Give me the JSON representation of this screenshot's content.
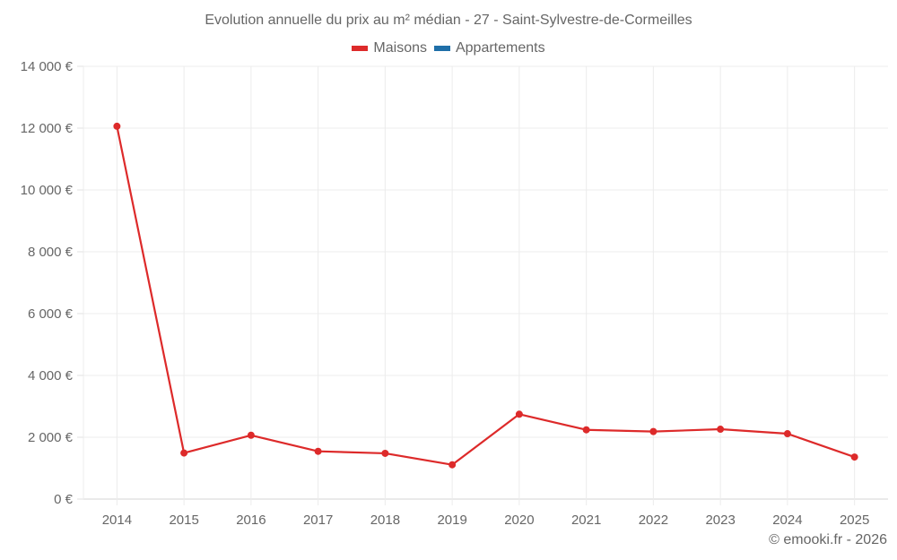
{
  "chart_data": {
    "type": "line",
    "title": "Evolution annuelle du prix au m² médian - 27 - Saint-Sylvestre-de-Cormeilles",
    "categories": [
      "2014",
      "2015",
      "2016",
      "2017",
      "2018",
      "2019",
      "2020",
      "2021",
      "2022",
      "2023",
      "2024",
      "2025"
    ],
    "series": [
      {
        "name": "Maisons",
        "color": "#dd2a2a",
        "values": [
          12060,
          1490,
          2065,
          1545,
          1480,
          1110,
          2745,
          2240,
          2185,
          2260,
          2115,
          1360
        ]
      },
      {
        "name": "Appartements",
        "color": "#1f6fa8",
        "values": []
      }
    ],
    "xlabel": "",
    "ylabel": "",
    "ylim": [
      0,
      14000
    ],
    "yticks": [
      0,
      2000,
      4000,
      6000,
      8000,
      10000,
      12000,
      14000
    ],
    "ytick_labels": [
      "0 €",
      "2 000 €",
      "4 000 €",
      "6 000 €",
      "8 000 €",
      "10 000 €",
      "12 000 €",
      "14 000 €"
    ],
    "grid": true,
    "legend_position": "top"
  },
  "header": {
    "title": "Evolution annuelle du prix au m² médian - 27 - Saint-Sylvestre-de-Cormeilles"
  },
  "legend": {
    "items": [
      {
        "label": "Maisons",
        "color": "#dd2a2a"
      },
      {
        "label": "Appartements",
        "color": "#1f6fa8"
      }
    ]
  },
  "footer": {
    "credit": "© emooki.fr - 2026"
  }
}
